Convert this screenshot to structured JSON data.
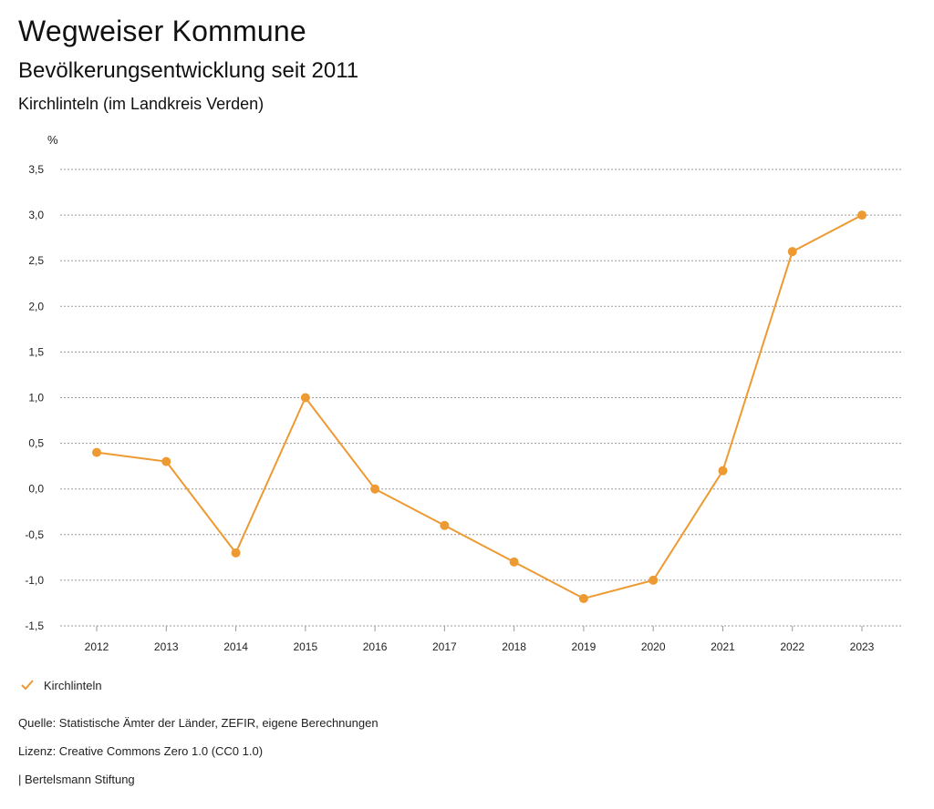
{
  "header": {
    "title": "Wegweiser Kommune",
    "subtitle": "Bevölkerungsentwicklung seit 2011",
    "region": "Kirchlinteln (im Landkreis Verden)"
  },
  "chart_data": {
    "type": "line",
    "title": "Bevölkerungsentwicklung seit 2011",
    "xlabel": "",
    "ylabel": "%",
    "ylim": [
      -1.5,
      3.5
    ],
    "yticks": [
      3.5,
      3.0,
      2.5,
      2.0,
      1.5,
      1.0,
      0.5,
      0.0,
      -0.5,
      -1.0,
      -1.5
    ],
    "ytick_labels": [
      "3,5",
      "3,0",
      "2,5",
      "2,0",
      "1,5",
      "1,0",
      "0,5",
      "0,0",
      "-0,5",
      "-1,0",
      "-1,5"
    ],
    "categories": [
      "2012",
      "2013",
      "2014",
      "2015",
      "2016",
      "2017",
      "2018",
      "2019",
      "2020",
      "2021",
      "2022",
      "2023"
    ],
    "series": [
      {
        "name": "Kirchlinteln",
        "color": "#ED9A32",
        "values": [
          0.4,
          0.3,
          -0.7,
          1.0,
          0.0,
          -0.4,
          -0.8,
          -1.2,
          -1.0,
          0.2,
          2.6,
          3.0
        ]
      }
    ],
    "grid": true,
    "legend": "bottom-left"
  },
  "legend": {
    "label": "Kirchlinteln",
    "icon": "check-icon",
    "color": "#ED9A32"
  },
  "footer": {
    "source": "Quelle: Statistische Ämter der Länder, ZEFIR, eigene Berechnungen",
    "license": "Lizenz: Creative Commons Zero 1.0 (CC0 1.0)",
    "publisher": "| Bertelsmann Stiftung"
  }
}
